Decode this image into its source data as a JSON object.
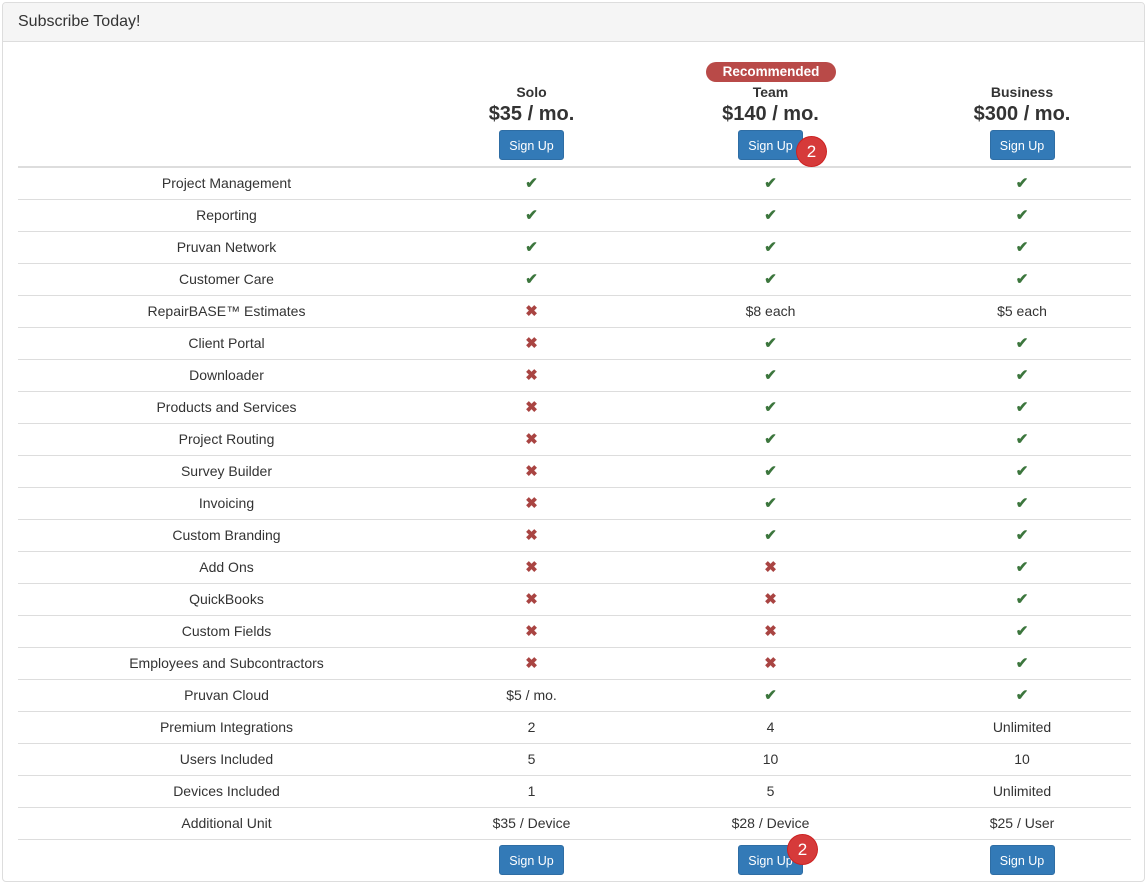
{
  "panel": {
    "title": "Subscribe Today!"
  },
  "plans": [
    {
      "name": "Solo",
      "price": "$35 / mo.",
      "signup_label": "Sign Up"
    },
    {
      "name": "Team",
      "price": "$140 / mo.",
      "signup_label": "Sign Up",
      "badge": "Recommended"
    },
    {
      "name": "Business",
      "price": "$300 / mo.",
      "signup_label": "Sign Up"
    }
  ],
  "features": [
    {
      "label": "Project Management",
      "values": [
        "check",
        "check",
        "check"
      ]
    },
    {
      "label": "Reporting",
      "values": [
        "check",
        "check",
        "check"
      ]
    },
    {
      "label": "Pruvan Network",
      "values": [
        "check",
        "check",
        "check"
      ]
    },
    {
      "label": "Customer Care",
      "values": [
        "check",
        "check",
        "check"
      ]
    },
    {
      "label": "RepairBASE™ Estimates",
      "values": [
        "cross",
        "$8 each",
        "$5 each"
      ]
    },
    {
      "label": "Client Portal",
      "values": [
        "cross",
        "check",
        "check"
      ]
    },
    {
      "label": "Downloader",
      "values": [
        "cross",
        "check",
        "check"
      ]
    },
    {
      "label": "Products and Services",
      "values": [
        "cross",
        "check",
        "check"
      ]
    },
    {
      "label": "Project Routing",
      "values": [
        "cross",
        "check",
        "check"
      ]
    },
    {
      "label": "Survey Builder",
      "values": [
        "cross",
        "check",
        "check"
      ]
    },
    {
      "label": "Invoicing",
      "values": [
        "cross",
        "check",
        "check"
      ]
    },
    {
      "label": "Custom Branding",
      "values": [
        "cross",
        "check",
        "check"
      ]
    },
    {
      "label": "Add Ons",
      "values": [
        "cross",
        "cross",
        "check"
      ]
    },
    {
      "label": "QuickBooks",
      "values": [
        "cross",
        "cross",
        "check"
      ]
    },
    {
      "label": "Custom Fields",
      "values": [
        "cross",
        "cross",
        "check"
      ]
    },
    {
      "label": "Employees and Subcontractors",
      "values": [
        "cross",
        "cross",
        "check"
      ]
    },
    {
      "label": "Pruvan Cloud",
      "values": [
        "$5 / mo.",
        "check",
        "check"
      ]
    },
    {
      "label": "Premium Integrations",
      "values": [
        "2",
        "4",
        "Unlimited"
      ]
    },
    {
      "label": "Users Included",
      "values": [
        "5",
        "10",
        "10"
      ]
    },
    {
      "label": "Devices Included",
      "values": [
        "1",
        "5",
        "Unlimited"
      ]
    },
    {
      "label": "Additional Unit",
      "values": [
        "$35 / Device",
        "$28 / Device",
        "$25 / User"
      ]
    }
  ],
  "icons": {
    "check": "check-icon",
    "cross": "cross-icon"
  },
  "colors": {
    "check": "#3c763d",
    "cross": "#a94442",
    "button": "#337ab7",
    "badge": "#b94a48",
    "marker": "#d63a3a"
  },
  "markers": [
    {
      "text": "2"
    },
    {
      "text": "2"
    }
  ]
}
